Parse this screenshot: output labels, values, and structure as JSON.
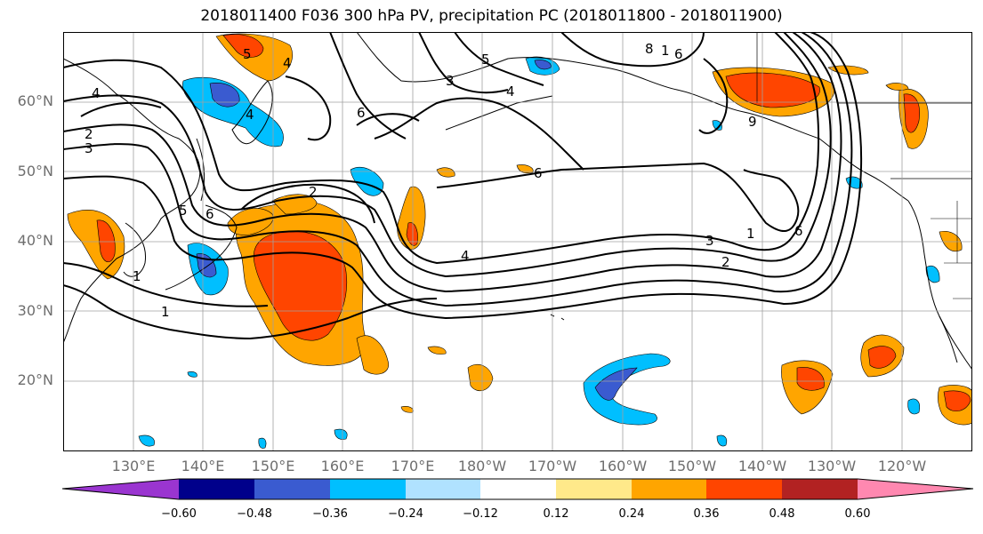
{
  "title": "2018011400 F036 300 hPa PV, precipitation PC (2018011800 - 2018011900)",
  "lat_labels": [
    "60°N",
    "50°N",
    "40°N",
    "30°N",
    "20°N"
  ],
  "lon_labels": [
    "130°E",
    "140°E",
    "150°E",
    "160°E",
    "170°E",
    "180°W",
    "170°W",
    "160°W",
    "150°W",
    "140°W",
    "130°W",
    "120°W"
  ],
  "colorbar": {
    "tick_labels": [
      "−0.60",
      "−0.48",
      "−0.36",
      "−0.24",
      "−0.12",
      "0.12",
      "0.24",
      "0.36",
      "0.48",
      "0.60"
    ],
    "colors": [
      "#9a35d0",
      "#00008b",
      "#3a5bd0",
      "#00bfff",
      "#b0e2ff",
      "#ffffff",
      "#ffe98a",
      "#ffa500",
      "#ff4500",
      "#b22222",
      "#ff88b0"
    ]
  },
  "contour_labels": [
    "4",
    "2",
    "3",
    "4",
    "5",
    "4",
    "3",
    "5",
    "4",
    "8",
    "1",
    "6",
    "6",
    "2",
    "6",
    "1",
    "1",
    "4",
    "3",
    "2",
    "1",
    "6",
    "5",
    "9",
    "6"
  ],
  "colors": {
    "contour": "#000000",
    "coast": "#000000",
    "grid": "#a0a0a0",
    "positive": "#ff4500",
    "negative": "#00bfff"
  }
}
